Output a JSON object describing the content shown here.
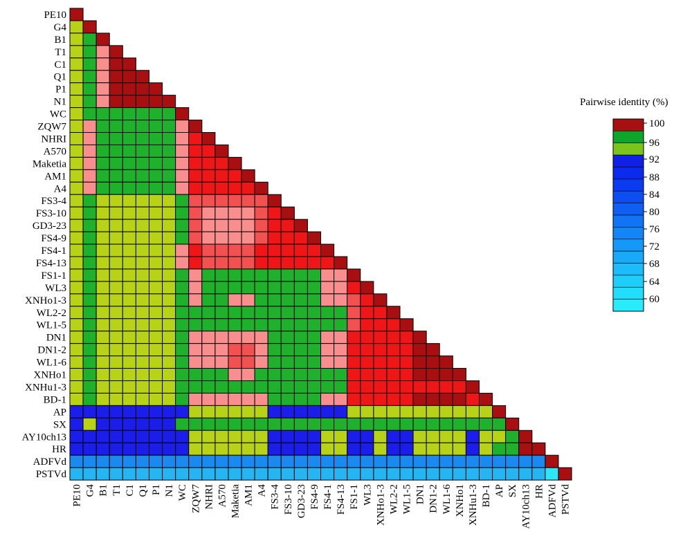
{
  "chart_data": {
    "type": "heatmap",
    "title": "",
    "labels": [
      "PE10",
      "G4",
      "B1",
      "T1",
      "C1",
      "Q1",
      "P1",
      "N1",
      "WC",
      "ZQW7",
      "NHRI",
      "A570",
      "Maketia",
      "AM1",
      "A4",
      "FS3-4",
      "FS3-10",
      "GD3-23",
      "FS4-9",
      "FS4-1",
      "FS4-13",
      "FS1-1",
      "WL3",
      "XNHo1-3",
      "WL2-2",
      "WL1-5",
      "DN1",
      "DN1-2",
      "WL1-6",
      "XNHo1",
      "XNHu1-3",
      "BD-1",
      "AP",
      "SX",
      "AY10ch13",
      "HR",
      "ADFVd",
      "PSTVd"
    ],
    "matrix_layout": "lower-triangle",
    "value_unit": "pairwise identity bin (category code)",
    "category_codes": {
      "d": "100 (dark red)",
      "r": "~99-100 (red)",
      "m": "~98-99 (medium red)",
      "p": "~97-98 (pink)",
      "g": "96-100 (green)",
      "y": "96 (yellow-green)",
      "b1": "92-96 (blue)",
      "b2": "below 92 (mid blue)",
      "c1": "around 72 (sky blue)",
      "c2": "around 64-68 (light blue)",
      "c3": "around 60 (cyan)"
    },
    "rows": [
      "d",
      "y d",
      "y g d",
      "y g p d",
      "y g p d d",
      "y g p d d d",
      "y g p d d d d",
      "y g p d d d d d",
      "y g g g g g g g d",
      "y p g g g g g g p d",
      "y p g g g g g g p r d",
      "y p g g g g g g p r r d",
      "y p g g g g g g p r r r d",
      "y p g g g g g g p r r r r d",
      "y p g g g g g g p r r r r r d",
      "y g y y y y y y g m m m m m m d",
      "y g y y y y y y g m p p p p m r d",
      "y g y y y y y y g m p p p p m r r d",
      "y g y y y y y y g m p p p p m r r r d",
      "y g y y y y y y p r m m m m r r r r r d",
      "y g y y y y y y p r m m m m r r r r r r d",
      "y g y y y y y y g p g g g g g g g g g p p d",
      "y g y y y y y y g p g g g g g g g g g p p r d",
      "y g y y y y y y g p g g p p g g g g g p p m r d",
      "y g y y y y y y g g g g g g g g g g g g g m r r d",
      "y g y y y y y y g g g g g g g g g g g g g m r r r d",
      "y g y y y y y y g p p p p p p g g g g p p r r r r r d",
      "y g y y y y y y g p p p m m p g g g g p p r r r r r d d",
      "y g y y y y y y g p p p m m p g g g g p p r r r r r d d d",
      "y g y y y y y y g g g g p p g g g g g g g r r r r r d d d d",
      "y g y y y y y y g g g g g g g g g g g g g r r r r r r r r r d",
      "y g y y y y y y g p p p p p p g g g g p p r r r r r d d d d r d",
      "b1 b1 b1 b1 b1 b1 b1 b1 b1 y y y y y y b1 b1 b1 b1 b1 b1 y y y y y y y y y y y d",
      "b1 y b1 b1 b1 b1 b1 b1 g g g g g g g g g g g g g g g g g g g g g g g g g d",
      "b1 b1 b1 b1 b1 b1 b1 b1 b1 y y y y y y b1 b1 b1 b1 y y b1 b1 y b1 b1 y y y y b1 y y g d",
      "b1 b1 b1 b1 b1 b1 b1 b1 b1 y y y y y y b1 b1 b1 b1 y y b1 b1 y b1 b1 y y y y b1 y g g d d",
      "c1 c1 c1 c1 c1 c1 c1 c1 c1 c1 c1 c1 c1 c1 c1 c1 c1 c1 c1 c1 c1 c1 c1 c1 c1 c1 c1 c1 c1 c1 c1 c1 c1 c1 c1 c1 d",
      "c2 c2 c2 c2 c2 c2 c2 c2 c2 c2 c2 c2 c2 c2 c2 c2 c2 c2 c2 c2 c2 c2 c2 c2 c2 c2 c2 c2 c2 c2 c2 c2 c2 c2 c2 c2 c3 d"
    ],
    "legend": {
      "title": "Pairwise identity (%)",
      "ticks": [
        "100",
        "96",
        "92",
        "88",
        "84",
        "80",
        "76",
        "72",
        "68",
        "64",
        "60"
      ],
      "bands": [
        "#a80f10",
        "#0ea52a",
        "#7bc41d",
        "#1020e6",
        "#0a2aee",
        "#0a3bf0",
        "#0c4ef2",
        "#0e60f4",
        "#1074f5",
        "#1286f6",
        "#1598f7",
        "#18aaf8",
        "#1bbcf9",
        "#1ecdfa",
        "#22ddfb",
        "#28ecfc"
      ]
    },
    "colors": {
      "d": "#a80f10",
      "r": "#ee1616",
      "m": "#f25151",
      "p": "#f98e8e",
      "g": "#1fb02c",
      "y": "#b8d317",
      "b1": "#1a1ee8",
      "b2": "#1560f0",
      "c1": "#1a8af0",
      "c2": "#25b5f2",
      "c3": "#2fe6f5"
    }
  }
}
